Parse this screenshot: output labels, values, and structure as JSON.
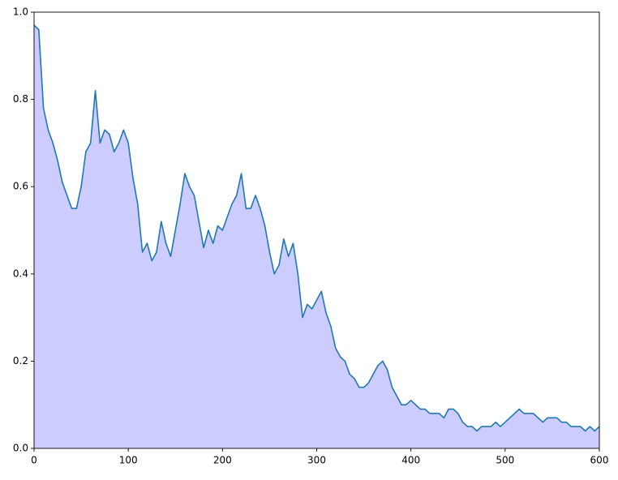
{
  "chart_data": {
    "type": "area",
    "x": [
      0,
      5,
      10,
      15,
      20,
      25,
      30,
      35,
      40,
      45,
      50,
      55,
      60,
      65,
      70,
      75,
      80,
      85,
      90,
      95,
      100,
      105,
      110,
      115,
      120,
      125,
      130,
      135,
      140,
      145,
      150,
      155,
      160,
      165,
      170,
      175,
      180,
      185,
      190,
      195,
      200,
      205,
      210,
      215,
      220,
      225,
      230,
      235,
      240,
      245,
      250,
      255,
      260,
      265,
      270,
      275,
      280,
      285,
      290,
      295,
      300,
      305,
      310,
      315,
      320,
      325,
      330,
      335,
      340,
      345,
      350,
      355,
      360,
      365,
      370,
      375,
      380,
      385,
      390,
      395,
      400,
      405,
      410,
      415,
      420,
      425,
      430,
      435,
      440,
      445,
      450,
      455,
      460,
      465,
      470,
      475,
      480,
      485,
      490,
      495,
      500,
      505,
      510,
      515,
      520,
      525,
      530,
      535,
      540,
      545,
      550,
      555,
      560,
      565,
      570,
      575,
      580,
      585,
      590,
      595,
      600
    ],
    "series": [
      {
        "color": "#1f77b4",
        "fill": "#ccccff",
        "values": [
          0.97,
          0.96,
          0.78,
          0.73,
          0.7,
          0.66,
          0.61,
          0.58,
          0.55,
          0.55,
          0.6,
          0.68,
          0.7,
          0.82,
          0.7,
          0.73,
          0.72,
          0.68,
          0.7,
          0.73,
          0.7,
          0.62,
          0.56,
          0.45,
          0.47,
          0.43,
          0.45,
          0.52,
          0.47,
          0.44,
          0.5,
          0.56,
          0.63,
          0.6,
          0.58,
          0.52,
          0.46,
          0.5,
          0.47,
          0.51,
          0.5,
          0.53,
          0.56,
          0.58,
          0.63,
          0.55,
          0.55,
          0.58,
          0.55,
          0.51,
          0.45,
          0.4,
          0.42,
          0.48,
          0.44,
          0.47,
          0.4,
          0.3,
          0.33,
          0.32,
          0.34,
          0.36,
          0.31,
          0.28,
          0.23,
          0.21,
          0.2,
          0.17,
          0.16,
          0.14,
          0.14,
          0.15,
          0.17,
          0.19,
          0.2,
          0.18,
          0.14,
          0.12,
          0.1,
          0.1,
          0.11,
          0.1,
          0.09,
          0.09,
          0.08,
          0.08,
          0.08,
          0.07,
          0.09,
          0.09,
          0.08,
          0.06,
          0.05,
          0.05,
          0.04,
          0.05,
          0.05,
          0.05,
          0.06,
          0.05,
          0.06,
          0.07,
          0.08,
          0.09,
          0.08,
          0.08,
          0.08,
          0.07,
          0.06,
          0.07,
          0.07,
          0.07,
          0.06,
          0.06,
          0.05,
          0.05,
          0.05,
          0.04,
          0.05,
          0.04,
          0.05
        ]
      }
    ],
    "xlim": [
      0,
      600
    ],
    "xticks": [
      0,
      100,
      200,
      300,
      400,
      500,
      600
    ],
    "ylim": [
      0,
      1
    ],
    "yticks": [
      {
        "value": 0,
        "label": "0.0"
      },
      0.2,
      0.4,
      0.6,
      0.8,
      {
        "value": 1,
        "label": "1.0"
      }
    ]
  }
}
